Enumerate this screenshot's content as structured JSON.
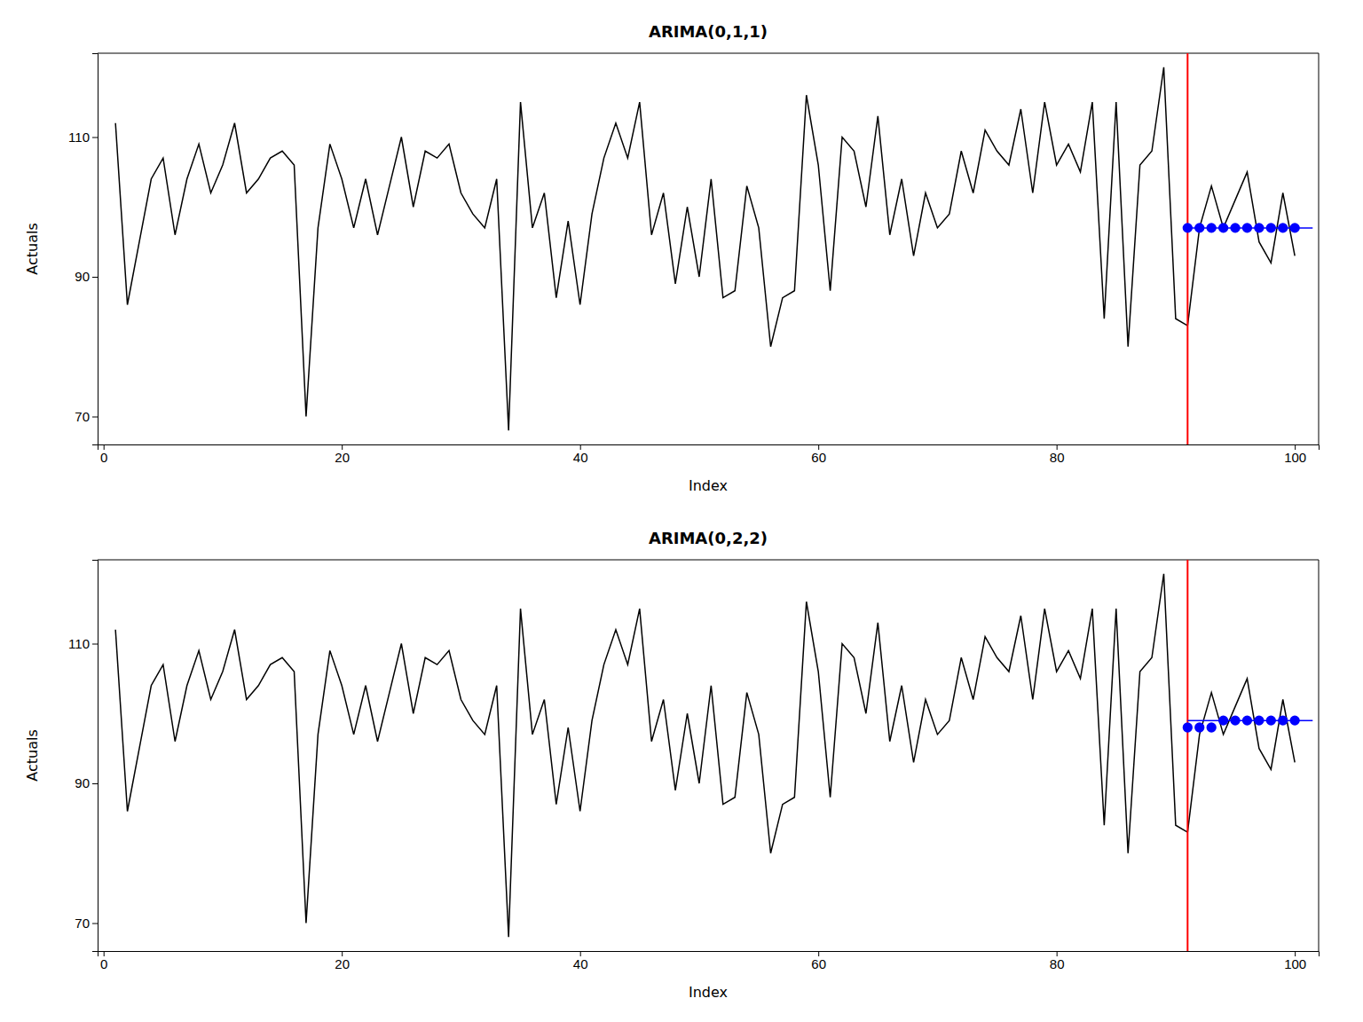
{
  "chart_data": [
    {
      "type": "line",
      "title": "ARIMA(0,1,1)",
      "x_label": "Index",
      "y_label": "Actuals",
      "xlim": [
        -0.5,
        102
      ],
      "ylim": [
        66,
        122
      ],
      "xticks": [
        0,
        20,
        40,
        60,
        80,
        100
      ],
      "yticks": [
        70,
        90,
        110
      ],
      "grid": false,
      "series": [
        {
          "type": "line",
          "color": "#000000",
          "x": [
            1,
            2,
            3,
            4,
            5,
            6,
            7,
            8,
            9,
            10,
            11,
            12,
            13,
            14,
            15,
            16,
            17,
            18,
            19,
            20,
            21,
            22,
            23,
            24,
            25,
            26,
            27,
            28,
            29,
            30,
            31,
            32,
            33,
            34,
            35,
            36,
            37,
            38,
            39,
            40,
            41,
            42,
            43,
            44,
            45,
            46,
            47,
            48,
            49,
            50,
            51,
            52,
            53,
            54,
            55,
            56,
            57,
            58,
            59,
            60,
            61,
            62,
            63,
            64,
            65,
            66,
            67,
            68,
            69,
            70,
            71,
            72,
            73,
            74,
            75,
            76,
            77,
            78,
            79,
            80,
            81,
            82,
            83,
            84,
            85,
            86,
            87,
            88,
            89,
            90,
            91,
            92,
            93,
            94,
            95,
            96,
            97,
            98,
            99,
            100
          ],
          "values": [
            112,
            86,
            95,
            104,
            107,
            96,
            104,
            109,
            102,
            106,
            112,
            102,
            104,
            107,
            108,
            106,
            70,
            97,
            109,
            104,
            97,
            104,
            96,
            103,
            110,
            100,
            108,
            107,
            109,
            102,
            99,
            97,
            104,
            68,
            115,
            97,
            102,
            87,
            98,
            86,
            99,
            107,
            112,
            107,
            115,
            96,
            102,
            89,
            100,
            90,
            104,
            87,
            88,
            103,
            97,
            80,
            87,
            88,
            116,
            106,
            88,
            110,
            108,
            100,
            113,
            96,
            104,
            93,
            102,
            97,
            99,
            108,
            102,
            111,
            108,
            106,
            114,
            102,
            115,
            106,
            109,
            105,
            115,
            84,
            115,
            80,
            106,
            108,
            120,
            84,
            83,
            97,
            103,
            97,
            101,
            105,
            95,
            92,
            102,
            93
          ]
        },
        {
          "type": "vline",
          "color": "#FF0000",
          "x": [
            91
          ]
        },
        {
          "type": "line",
          "color": "#0000FF",
          "x": [
            91,
            101.5
          ],
          "values": [
            97,
            97
          ]
        },
        {
          "type": "scatter",
          "color": "#0000FF",
          "marker": "circle",
          "x": [
            91,
            92,
            93,
            94,
            95,
            96,
            97,
            98,
            99,
            100
          ],
          "values": [
            97,
            97,
            97,
            97,
            97,
            97,
            97,
            97,
            97,
            97
          ]
        }
      ]
    },
    {
      "type": "line",
      "title": "ARIMA(0,2,2)",
      "x_label": "Index",
      "y_label": "Actuals",
      "xlim": [
        -0.5,
        102
      ],
      "ylim": [
        66,
        122
      ],
      "xticks": [
        0,
        20,
        40,
        60,
        80,
        100
      ],
      "yticks": [
        70,
        90,
        110
      ],
      "grid": false,
      "series": [
        {
          "type": "line",
          "color": "#000000",
          "x": [
            1,
            2,
            3,
            4,
            5,
            6,
            7,
            8,
            9,
            10,
            11,
            12,
            13,
            14,
            15,
            16,
            17,
            18,
            19,
            20,
            21,
            22,
            23,
            24,
            25,
            26,
            27,
            28,
            29,
            30,
            31,
            32,
            33,
            34,
            35,
            36,
            37,
            38,
            39,
            40,
            41,
            42,
            43,
            44,
            45,
            46,
            47,
            48,
            49,
            50,
            51,
            52,
            53,
            54,
            55,
            56,
            57,
            58,
            59,
            60,
            61,
            62,
            63,
            64,
            65,
            66,
            67,
            68,
            69,
            70,
            71,
            72,
            73,
            74,
            75,
            76,
            77,
            78,
            79,
            80,
            81,
            82,
            83,
            84,
            85,
            86,
            87,
            88,
            89,
            90,
            91,
            92,
            93,
            94,
            95,
            96,
            97,
            98,
            99,
            100
          ],
          "values": [
            112,
            86,
            95,
            104,
            107,
            96,
            104,
            109,
            102,
            106,
            112,
            102,
            104,
            107,
            108,
            106,
            70,
            97,
            109,
            104,
            97,
            104,
            96,
            103,
            110,
            100,
            108,
            107,
            109,
            102,
            99,
            97,
            104,
            68,
            115,
            97,
            102,
            87,
            98,
            86,
            99,
            107,
            112,
            107,
            115,
            96,
            102,
            89,
            100,
            90,
            104,
            87,
            88,
            103,
            97,
            80,
            87,
            88,
            116,
            106,
            88,
            110,
            108,
            100,
            113,
            96,
            104,
            93,
            102,
            97,
            99,
            108,
            102,
            111,
            108,
            106,
            114,
            102,
            115,
            106,
            109,
            105,
            115,
            84,
            115,
            80,
            106,
            108,
            120,
            84,
            83,
            97,
            103,
            97,
            101,
            105,
            95,
            92,
            102,
            93
          ]
        },
        {
          "type": "vline",
          "color": "#FF0000",
          "x": [
            91
          ]
        },
        {
          "type": "line",
          "color": "#0000FF",
          "x": [
            91,
            101.5
          ],
          "values": [
            99,
            99
          ]
        },
        {
          "type": "scatter",
          "color": "#0000FF",
          "marker": "circle",
          "x": [
            91,
            92,
            93,
            94,
            95,
            96,
            97,
            98,
            99,
            100
          ],
          "values": [
            98,
            98,
            98,
            99,
            99,
            99,
            99,
            99,
            99,
            99
          ]
        }
      ]
    }
  ]
}
